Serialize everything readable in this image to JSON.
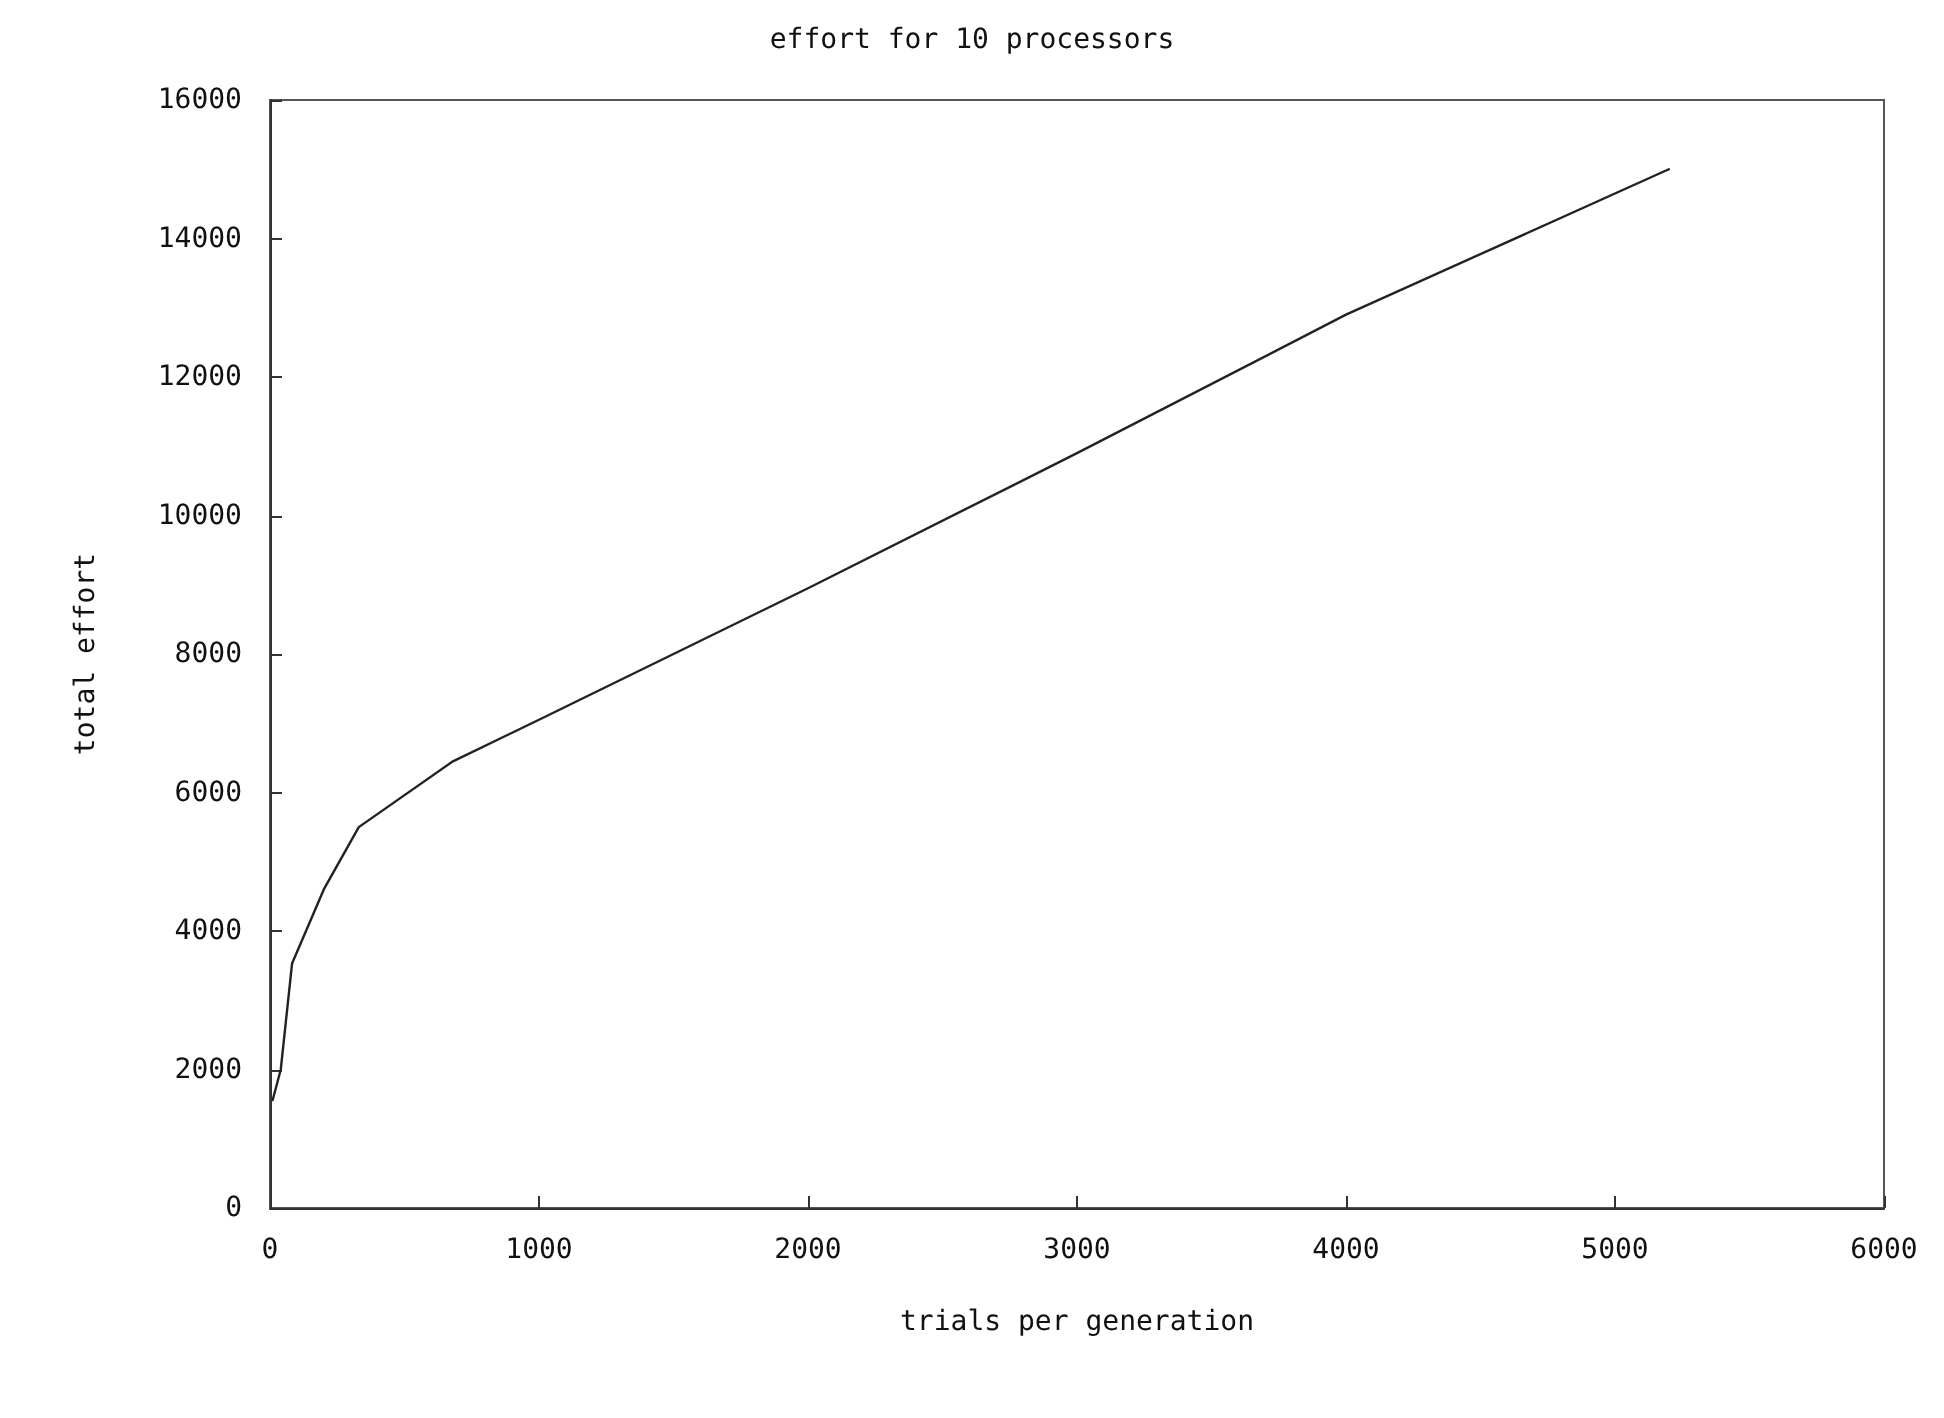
{
  "chart_data": {
    "type": "line",
    "title": "effort for 10 processors",
    "xlabel": "trials per generation",
    "ylabel": "total effort",
    "x": [
      10,
      40,
      82,
      200,
      330,
      680,
      1000,
      2000,
      3000,
      4000,
      5200
    ],
    "series": [
      {
        "color": "#222222",
        "values": [
          1560,
          2000,
          3530,
          4600,
          5500,
          6450,
          7050,
          8950,
          10900,
          12900,
          15000
        ]
      }
    ],
    "xlim": [
      0,
      6000
    ],
    "xticks": [
      0,
      1000,
      2000,
      3000,
      4000,
      5000,
      6000
    ],
    "ylim": [
      0,
      16000
    ],
    "yticks": [
      0,
      2000,
      4000,
      6000,
      8000,
      10000,
      12000,
      14000,
      16000
    ],
    "grid": false,
    "marker": "none",
    "line_style": "solid"
  }
}
